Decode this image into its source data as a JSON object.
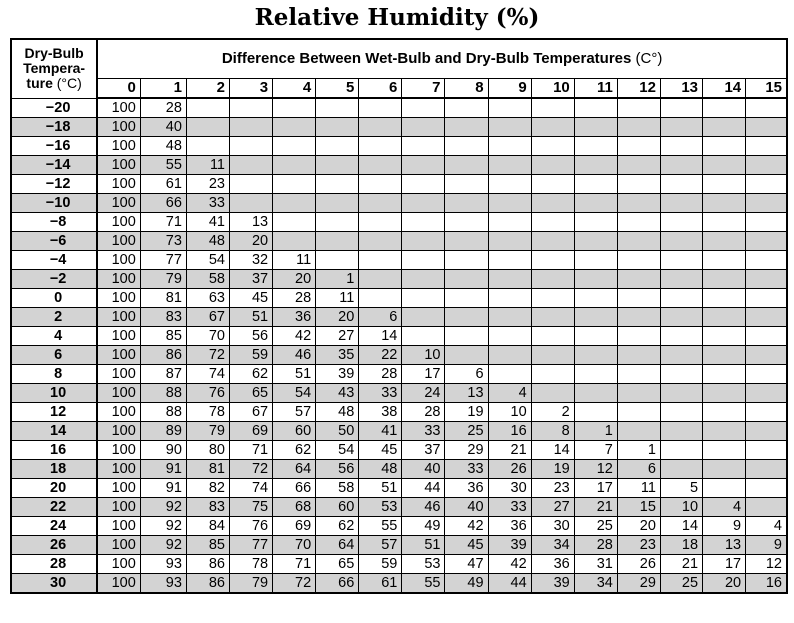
{
  "title": "Relative Humidity (%)",
  "corner": {
    "line1": "Dry-Bulb",
    "line2": "Tempera-",
    "line3_bold": "ture",
    "line3_unit": " (°C)"
  },
  "header": {
    "title": "Difference Between Wet-Bulb and Dry-Bulb Temperatures",
    "unit": " (C°)"
  },
  "columns": [
    "0",
    "1",
    "2",
    "3",
    "4",
    "5",
    "6",
    "7",
    "8",
    "9",
    "10",
    "11",
    "12",
    "13",
    "14",
    "15"
  ],
  "shade_color": "#d3d3d3",
  "rows": [
    {
      "t": "−20",
      "v": [
        "100",
        "28",
        "",
        "",
        "",
        "",
        "",
        "",
        "",
        "",
        "",
        "",
        "",
        "",
        "",
        ""
      ]
    },
    {
      "t": "−18",
      "v": [
        "100",
        "40",
        "",
        "",
        "",
        "",
        "",
        "",
        "",
        "",
        "",
        "",
        "",
        "",
        "",
        ""
      ]
    },
    {
      "t": "−16",
      "v": [
        "100",
        "48",
        "",
        "",
        "",
        "",
        "",
        "",
        "",
        "",
        "",
        "",
        "",
        "",
        "",
        ""
      ]
    },
    {
      "t": "−14",
      "v": [
        "100",
        "55",
        "11",
        "",
        "",
        "",
        "",
        "",
        "",
        "",
        "",
        "",
        "",
        "",
        "",
        ""
      ]
    },
    {
      "t": "−12",
      "v": [
        "100",
        "61",
        "23",
        "",
        "",
        "",
        "",
        "",
        "",
        "",
        "",
        "",
        "",
        "",
        "",
        ""
      ]
    },
    {
      "t": "−10",
      "v": [
        "100",
        "66",
        "33",
        "",
        "",
        "",
        "",
        "",
        "",
        "",
        "",
        "",
        "",
        "",
        "",
        ""
      ]
    },
    {
      "t": "−8",
      "v": [
        "100",
        "71",
        "41",
        "13",
        "",
        "",
        "",
        "",
        "",
        "",
        "",
        "",
        "",
        "",
        "",
        ""
      ]
    },
    {
      "t": "−6",
      "v": [
        "100",
        "73",
        "48",
        "20",
        "",
        "",
        "",
        "",
        "",
        "",
        "",
        "",
        "",
        "",
        "",
        ""
      ]
    },
    {
      "t": "−4",
      "v": [
        "100",
        "77",
        "54",
        "32",
        "11",
        "",
        "",
        "",
        "",
        "",
        "",
        "",
        "",
        "",
        "",
        ""
      ]
    },
    {
      "t": "−2",
      "v": [
        "100",
        "79",
        "58",
        "37",
        "20",
        "1",
        "",
        "",
        "",
        "",
        "",
        "",
        "",
        "",
        "",
        ""
      ]
    },
    {
      "t": "0",
      "v": [
        "100",
        "81",
        "63",
        "45",
        "28",
        "11",
        "",
        "",
        "",
        "",
        "",
        "",
        "",
        "",
        "",
        ""
      ]
    },
    {
      "t": "2",
      "v": [
        "100",
        "83",
        "67",
        "51",
        "36",
        "20",
        "6",
        "",
        "",
        "",
        "",
        "",
        "",
        "",
        "",
        ""
      ]
    },
    {
      "t": "4",
      "v": [
        "100",
        "85",
        "70",
        "56",
        "42",
        "27",
        "14",
        "",
        "",
        "",
        "",
        "",
        "",
        "",
        "",
        ""
      ]
    },
    {
      "t": "6",
      "v": [
        "100",
        "86",
        "72",
        "59",
        "46",
        "35",
        "22",
        "10",
        "",
        "",
        "",
        "",
        "",
        "",
        "",
        ""
      ]
    },
    {
      "t": "8",
      "v": [
        "100",
        "87",
        "74",
        "62",
        "51",
        "39",
        "28",
        "17",
        "6",
        "",
        "",
        "",
        "",
        "",
        "",
        ""
      ]
    },
    {
      "t": "10",
      "v": [
        "100",
        "88",
        "76",
        "65",
        "54",
        "43",
        "33",
        "24",
        "13",
        "4",
        "",
        "",
        "",
        "",
        "",
        ""
      ]
    },
    {
      "t": "12",
      "v": [
        "100",
        "88",
        "78",
        "67",
        "57",
        "48",
        "38",
        "28",
        "19",
        "10",
        "2",
        "",
        "",
        "",
        "",
        ""
      ]
    },
    {
      "t": "14",
      "v": [
        "100",
        "89",
        "79",
        "69",
        "60",
        "50",
        "41",
        "33",
        "25",
        "16",
        "8",
        "1",
        "",
        "",
        "",
        ""
      ]
    },
    {
      "t": "16",
      "v": [
        "100",
        "90",
        "80",
        "71",
        "62",
        "54",
        "45",
        "37",
        "29",
        "21",
        "14",
        "7",
        "1",
        "",
        "",
        ""
      ]
    },
    {
      "t": "18",
      "v": [
        "100",
        "91",
        "81",
        "72",
        "64",
        "56",
        "48",
        "40",
        "33",
        "26",
        "19",
        "12",
        "6",
        "",
        "",
        ""
      ]
    },
    {
      "t": "20",
      "v": [
        "100",
        "91",
        "82",
        "74",
        "66",
        "58",
        "51",
        "44",
        "36",
        "30",
        "23",
        "17",
        "11",
        "5",
        "",
        ""
      ]
    },
    {
      "t": "22",
      "v": [
        "100",
        "92",
        "83",
        "75",
        "68",
        "60",
        "53",
        "46",
        "40",
        "33",
        "27",
        "21",
        "15",
        "10",
        "4",
        ""
      ]
    },
    {
      "t": "24",
      "v": [
        "100",
        "92",
        "84",
        "76",
        "69",
        "62",
        "55",
        "49",
        "42",
        "36",
        "30",
        "25",
        "20",
        "14",
        "9",
        "4"
      ]
    },
    {
      "t": "26",
      "v": [
        "100",
        "92",
        "85",
        "77",
        "70",
        "64",
        "57",
        "51",
        "45",
        "39",
        "34",
        "28",
        "23",
        "18",
        "13",
        "9"
      ]
    },
    {
      "t": "28",
      "v": [
        "100",
        "93",
        "86",
        "78",
        "71",
        "65",
        "59",
        "53",
        "47",
        "42",
        "36",
        "31",
        "26",
        "21",
        "17",
        "12"
      ]
    },
    {
      "t": "30",
      "v": [
        "100",
        "93",
        "86",
        "79",
        "72",
        "66",
        "61",
        "55",
        "49",
        "44",
        "39",
        "34",
        "29",
        "25",
        "20",
        "16"
      ]
    }
  ]
}
